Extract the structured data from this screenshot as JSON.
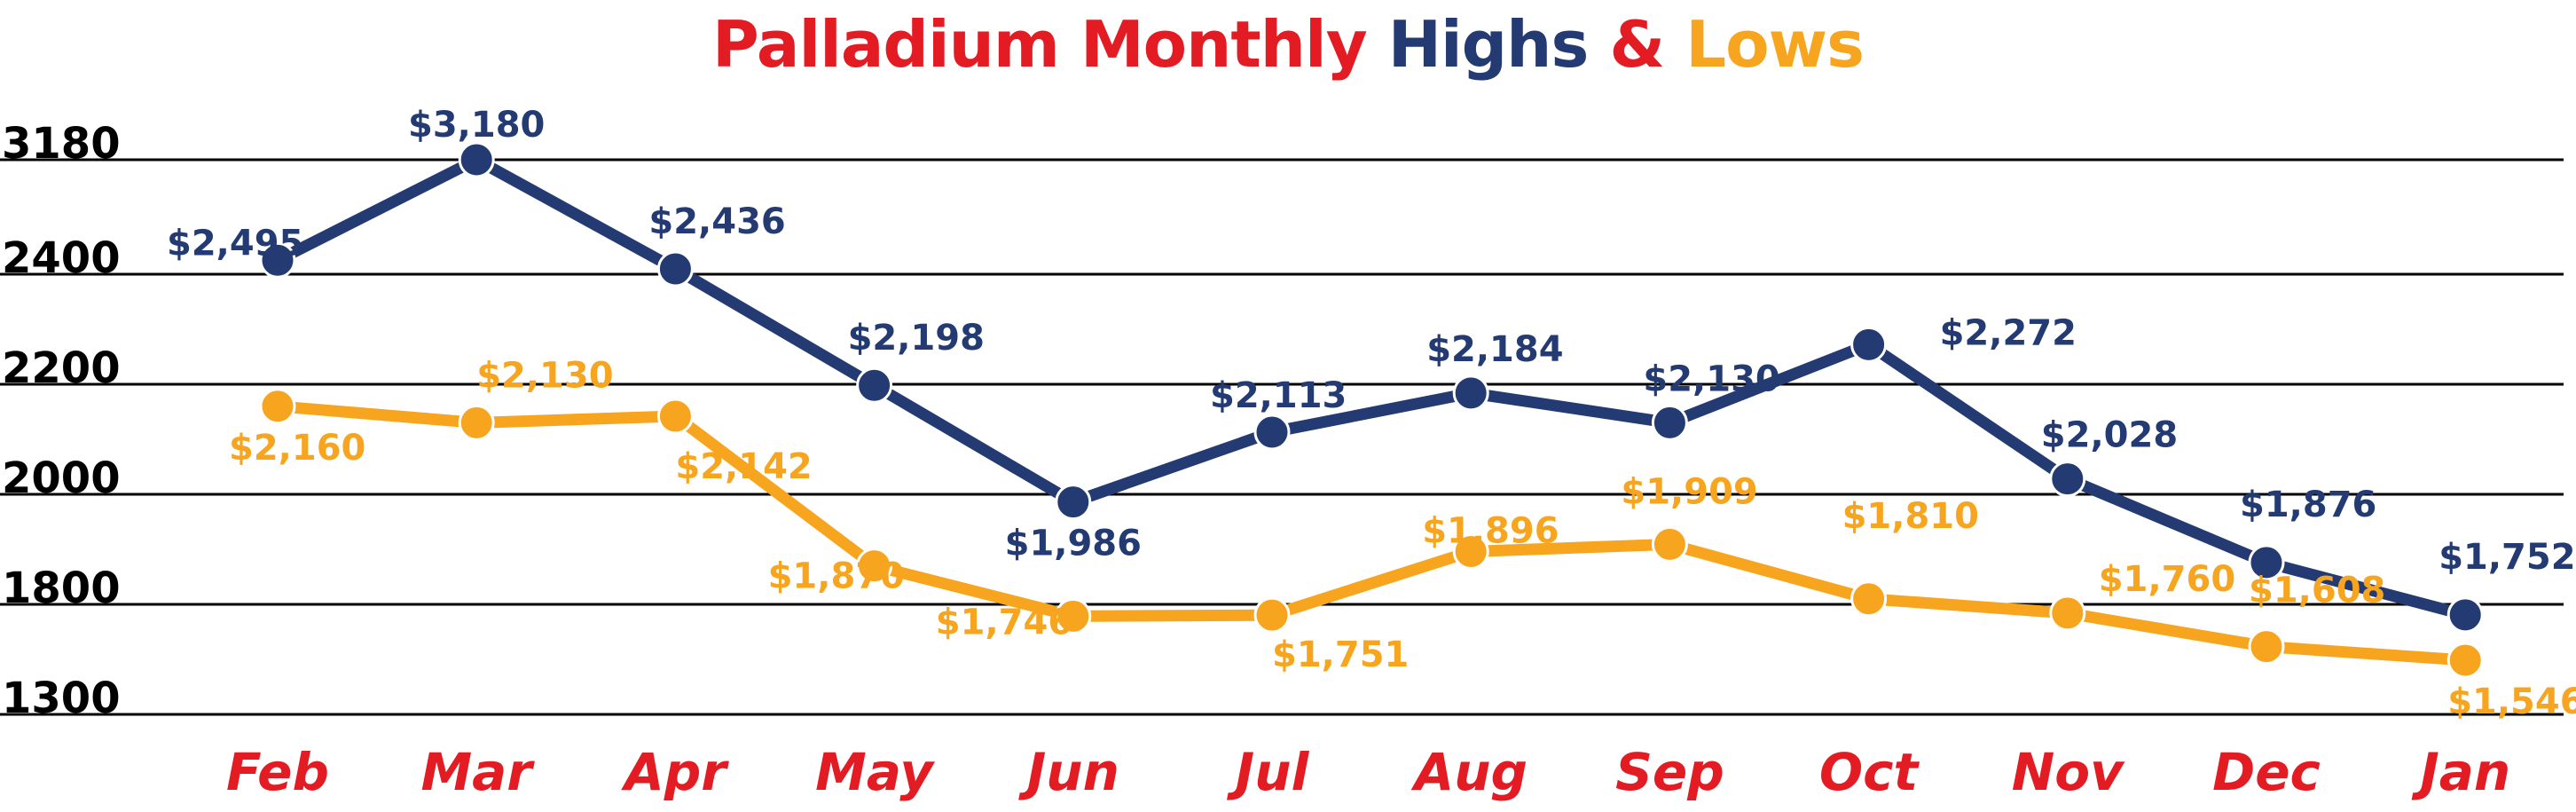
{
  "colors": {
    "highs": "#233a72",
    "lows": "#f7a51f",
    "title_red": "#e31b23",
    "grid": "#000000",
    "month_red": "#e31b23"
  },
  "chart_data": {
    "type": "line",
    "title_parts": [
      "Palladium Monthly",
      "Highs",
      "&",
      "Lows"
    ],
    "categories": [
      "Feb",
      "Mar",
      "Apr",
      "May",
      "Jun",
      "Jul",
      "Aug",
      "Sep",
      "Oct",
      "Nov",
      "Dec",
      "Jan"
    ],
    "y_ticks": [
      "3180",
      "2400",
      "2200",
      "2000",
      "1800",
      "1300"
    ],
    "grid": true,
    "series": [
      {
        "name": "Highs",
        "values": [
          2495,
          3180,
          2436,
          2198,
          1986,
          2113,
          2184,
          2130,
          2272,
          2028,
          1876,
          1752
        ],
        "labels": [
          "$2,495",
          "$3,180",
          "$2,436",
          "$2,198",
          "$1,986",
          "$2,113",
          "$2,184",
          "$2,130",
          "$2,272",
          "$2,028",
          "$1,876",
          "$1,752"
        ]
      },
      {
        "name": "Lows",
        "values": [
          2160,
          2130,
          2142,
          1870,
          1746,
          1751,
          1896,
          1909,
          1810,
          1760,
          1608,
          1546
        ],
        "labels": [
          "$2,160",
          "$2,130",
          "$2,142",
          "$1,870",
          "$1,746",
          "$1,751",
          "$1,896",
          "$1,909",
          "$1,810",
          "$1,760",
          "$1,608",
          "$1,546"
        ]
      }
    ]
  }
}
